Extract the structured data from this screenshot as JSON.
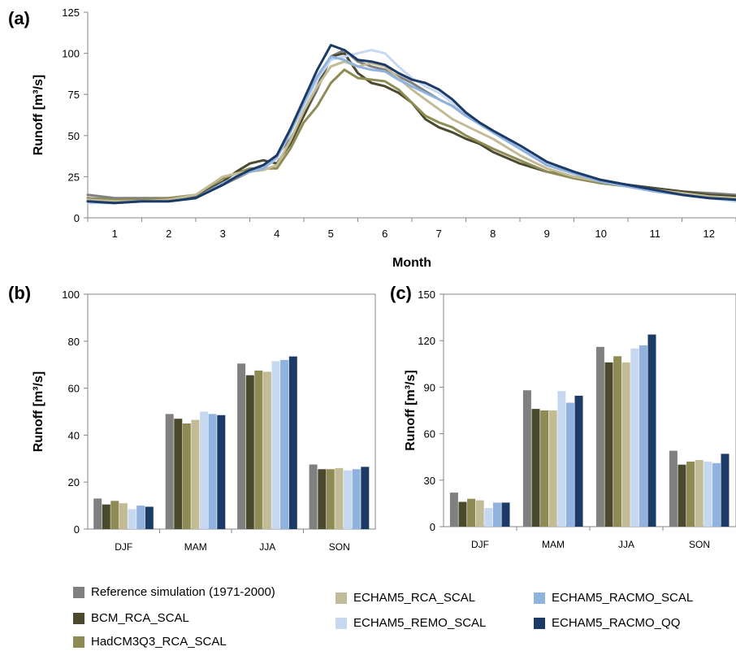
{
  "colors": {
    "reference": "#808080",
    "bcm": "#4b4a2e",
    "hadcm3q3": "#8f8b55",
    "echam5_rca": "#c2bb95",
    "echam5_remo": "#c6d8ef",
    "echam5_racmo_scal": "#8fb2df",
    "echam5_racmo_qq": "#1c3a66"
  },
  "legend": [
    {
      "name": "Reference simulation (1971-2000)",
      "color": "#808080"
    },
    {
      "name": "BCM_RCA_SCAL",
      "color": "#4b4a2e"
    },
    {
      "name": "HadCM3Q3_RCA_SCAL",
      "color": "#8f8b55"
    },
    {
      "name": "ECHAM5_RCA_SCAL",
      "color": "#c2bb95"
    },
    {
      "name": "ECHAM5_REMO_SCAL",
      "color": "#c6d8ef"
    },
    {
      "name": "ECHAM5_RACMO_SCAL",
      "color": "#8fb2df"
    },
    {
      "name": "ECHAM5_RACMO_QQ",
      "color": "#1c3a66"
    }
  ],
  "chart_data": [
    {
      "panel": "(a)",
      "type": "line",
      "xlabel": "Month",
      "ylabel": "Runoff [m³/s]",
      "xticks": [
        "1",
        "2",
        "3",
        "4",
        "5",
        "6",
        "7",
        "8",
        "9",
        "10",
        "11",
        "12"
      ],
      "xlim": [
        0.5,
        12.5
      ],
      "ylim": [
        0,
        125
      ],
      "yticks": [
        0,
        25,
        50,
        75,
        100,
        125
      ],
      "x": [
        0.5,
        1.0,
        1.5,
        2.0,
        2.5,
        3.0,
        3.25,
        3.5,
        3.75,
        4.0,
        4.25,
        4.5,
        4.75,
        5.0,
        5.25,
        5.5,
        5.75,
        6.0,
        6.25,
        6.5,
        6.75,
        7.0,
        7.25,
        7.5,
        7.75,
        8.0,
        8.5,
        9.0,
        9.5,
        10.0,
        10.5,
        11.0,
        11.5,
        12.0,
        12.5
      ],
      "series": [
        {
          "name": "Reference simulation (1971-2000)",
          "color": "#808080",
          "values": [
            14,
            12,
            12,
            12,
            13,
            20,
            24,
            28,
            30,
            38,
            48,
            62,
            78,
            98,
            102,
            95,
            92,
            90,
            86,
            82,
            77,
            72,
            68,
            62,
            58,
            52,
            42,
            32,
            27,
            23,
            20,
            18,
            16,
            15,
            14
          ]
        },
        {
          "name": "BCM_RCA_SCAL",
          "color": "#4b4a2e",
          "values": [
            10,
            9,
            10,
            11,
            13,
            22,
            28,
            33,
            35,
            33,
            45,
            62,
            80,
            98,
            100,
            88,
            82,
            80,
            76,
            70,
            60,
            55,
            52,
            48,
            45,
            40,
            33,
            28,
            25,
            22,
            20,
            18,
            16,
            14,
            13
          ]
        },
        {
          "name": "HadCM3Q3_RCA_SCAL",
          "color": "#8f8b55",
          "values": [
            12,
            11,
            11,
            12,
            14,
            24,
            27,
            30,
            30,
            30,
            42,
            58,
            68,
            82,
            90,
            85,
            84,
            83,
            78,
            70,
            62,
            58,
            55,
            50,
            46,
            42,
            35,
            28,
            24,
            21,
            19,
            17,
            15,
            13,
            12
          ]
        },
        {
          "name": "ECHAM5_RCA_SCAL",
          "color": "#c2bb95",
          "values": [
            11,
            10,
            10,
            11,
            14,
            25,
            27,
            28,
            29,
            32,
            47,
            65,
            80,
            92,
            95,
            92,
            94,
            92,
            85,
            78,
            72,
            66,
            60,
            56,
            52,
            48,
            38,
            30,
            25,
            22,
            19,
            17,
            15,
            13,
            12
          ]
        },
        {
          "name": "ECHAM5_REMO_SCAL",
          "color": "#c6d8ef",
          "values": [
            9,
            9,
            10,
            10,
            12,
            20,
            25,
            28,
            30,
            36,
            52,
            68,
            84,
            96,
            98,
            100,
            102,
            100,
            92,
            85,
            80,
            76,
            70,
            64,
            58,
            52,
            42,
            32,
            27,
            22,
            19,
            16,
            14,
            12,
            10
          ]
        },
        {
          "name": "ECHAM5_RACMO_SCAL",
          "color": "#8fb2df",
          "values": [
            10,
            9,
            10,
            10,
            12,
            21,
            25,
            28,
            30,
            37,
            52,
            70,
            86,
            98,
            96,
            92,
            90,
            89,
            84,
            80,
            76,
            72,
            68,
            62,
            57,
            52,
            42,
            32,
            27,
            22,
            19,
            16,
            14,
            12,
            11
          ]
        },
        {
          "name": "ECHAM5_RACMO_QQ",
          "color": "#1c3a66",
          "values": [
            10,
            9,
            10,
            10,
            12,
            20,
            25,
            29,
            32,
            38,
            54,
            72,
            90,
            105,
            102,
            96,
            95,
            93,
            88,
            84,
            82,
            78,
            72,
            64,
            58,
            53,
            44,
            34,
            28,
            23,
            20,
            17,
            14,
            12,
            11
          ]
        }
      ]
    },
    {
      "panel": "(b)",
      "type": "bar",
      "ylabel": "Runoff [m³/s]",
      "categories": [
        "DJF",
        "MAM",
        "JJA",
        "SON"
      ],
      "ylim": [
        0,
        100
      ],
      "yticks": [
        0,
        20,
        40,
        60,
        80,
        100
      ],
      "series": [
        {
          "name": "Reference simulation (1971-2000)",
          "color": "#808080",
          "values": [
            13,
            49,
            70.5,
            27.5
          ]
        },
        {
          "name": "BCM_RCA_SCAL",
          "color": "#4b4a2e",
          "values": [
            10.5,
            47,
            65.5,
            25.5
          ]
        },
        {
          "name": "HadCM3Q3_RCA_SCAL",
          "color": "#8f8b55",
          "values": [
            12,
            45,
            67.5,
            25.5
          ]
        },
        {
          "name": "ECHAM5_RCA_SCAL",
          "color": "#c2bb95",
          "values": [
            11,
            46.5,
            67,
            26
          ]
        },
        {
          "name": "ECHAM5_REMO_SCAL",
          "color": "#c6d8ef",
          "values": [
            8.5,
            50,
            71.5,
            25
          ]
        },
        {
          "name": "ECHAM5_RACMO_SCAL",
          "color": "#8fb2df",
          "values": [
            10,
            49,
            72,
            25.5
          ]
        },
        {
          "name": "ECHAM5_RACMO_QQ",
          "color": "#1c3a66",
          "values": [
            9.5,
            48.5,
            73.5,
            26.5
          ]
        }
      ]
    },
    {
      "panel": "(c)",
      "type": "bar",
      "ylabel": "Runoff [m³/s]",
      "categories": [
        "DJF",
        "MAM",
        "JJA",
        "SON"
      ],
      "ylim": [
        0,
        150
      ],
      "yticks": [
        0,
        30,
        60,
        90,
        120,
        150
      ],
      "series": [
        {
          "name": "Reference simulation (1971-2000)",
          "color": "#808080",
          "values": [
            22,
            88,
            116,
            49
          ]
        },
        {
          "name": "BCM_RCA_SCAL",
          "color": "#4b4a2e",
          "values": [
            16,
            76,
            106,
            40
          ]
        },
        {
          "name": "HadCM3Q3_RCA_SCAL",
          "color": "#8f8b55",
          "values": [
            18,
            75,
            110,
            42
          ]
        },
        {
          "name": "ECHAM5_RCA_SCAL",
          "color": "#c2bb95",
          "values": [
            17,
            75,
            106,
            43
          ]
        },
        {
          "name": "ECHAM5_REMO_SCAL",
          "color": "#c6d8ef",
          "values": [
            12,
            87.5,
            115,
            42
          ]
        },
        {
          "name": "ECHAM5_RACMO_SCAL",
          "color": "#8fb2df",
          "values": [
            15.5,
            80,
            117,
            41
          ]
        },
        {
          "name": "ECHAM5_RACMO_QQ",
          "color": "#1c3a66",
          "values": [
            15.5,
            84.5,
            124,
            47
          ]
        }
      ]
    }
  ]
}
